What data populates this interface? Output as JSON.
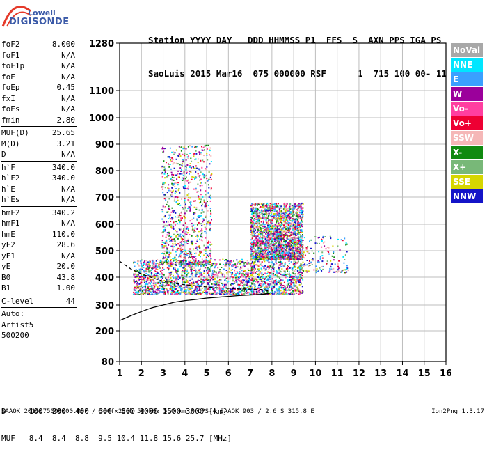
{
  "brand": {
    "line1": "Lowell",
    "line2": "DIGISONDE"
  },
  "header": {
    "line1": "Station YYYY DAY   DDD HHMMSS P1  FFS  S  AXN PPS IGA PS",
    "line2": "SaoLuis 2015 Mar16  075 000000 RSF      1  715 100 00- 11"
  },
  "params": [
    {
      "k": "foF2",
      "v": "8.000"
    },
    {
      "k": "foF1",
      "v": "N/A"
    },
    {
      "k": "foF1p",
      "v": "N/A"
    },
    {
      "k": "foE",
      "v": "N/A"
    },
    {
      "k": "foEp",
      "v": "0.45"
    },
    {
      "k": "fxI",
      "v": "N/A"
    },
    {
      "k": "foEs",
      "v": "N/A"
    },
    {
      "k": "fmin",
      "v": "2.80"
    },
    {
      "sep": true
    },
    {
      "k": "MUF(D)",
      "v": "25.65"
    },
    {
      "k": "M(D)",
      "v": "3.21"
    },
    {
      "k": "D",
      "v": "N/A"
    },
    {
      "sep": true
    },
    {
      "k": "h`F",
      "v": "340.0"
    },
    {
      "k": "h`F2",
      "v": "340.0"
    },
    {
      "k": "h`E",
      "v": "N/A"
    },
    {
      "k": "h`Es",
      "v": "N/A"
    },
    {
      "sep": true
    },
    {
      "k": "hmF2",
      "v": "340.2"
    },
    {
      "k": "hmF1",
      "v": "N/A"
    },
    {
      "k": "hmE",
      "v": "110.0"
    },
    {
      "k": "yF2",
      "v": "28.6"
    },
    {
      "k": "yF1",
      "v": "N/A"
    },
    {
      "k": "yE",
      "v": "20.0"
    },
    {
      "k": "B0",
      "v": "43.8"
    },
    {
      "k": "B1",
      "v": "1.00"
    },
    {
      "sep": true
    },
    {
      "k": "C-level",
      "v": "44"
    },
    {
      "sep": true
    },
    {
      "t": "Auto:"
    },
    {
      "t": "Artist5"
    },
    {
      "t": "500200"
    }
  ],
  "legend": [
    {
      "label": "NoVal",
      "color": "#a8a8a8"
    },
    {
      "label": "NNE",
      "color": "#00e6ff"
    },
    {
      "label": "E",
      "color": "#3aa0ff"
    },
    {
      "label": "W",
      "color": "#9b009b"
    },
    {
      "label": "Vo-",
      "color": "#ff3fa0"
    },
    {
      "label": "Vo+",
      "color": "#ee0033"
    },
    {
      "label": "SSW",
      "color": "#f5b7b7"
    },
    {
      "label": "X-",
      "color": "#108a10"
    },
    {
      "label": "X+",
      "color": "#78b878"
    },
    {
      "label": "SSE",
      "color": "#d6d600"
    },
    {
      "label": "NNW",
      "color": "#1414c8"
    }
  ],
  "bottom": {
    "d_row": "D     100  200  400  600  800 1000 1500 3000 [km]",
    "muf_row": "MUF   8.4  8.4  8.8  9.5 10.4 11.8 15.6 25.7 [MHz]"
  },
  "footer": {
    "text": "SAAOK_2015075000000.RSF / 300fx256h 50 kHz 5.0 km / DPS-4 SAAOK 903 / 2.6 S 315.8 E",
    "version": "Ion2Png 1.3.17"
  },
  "chart_data": {
    "type": "scatter",
    "title": "",
    "xlabel": "",
    "ylabel": "",
    "xlim": [
      1,
      16
    ],
    "ylim": [
      80,
      1280
    ],
    "x_ticks": [
      1,
      2,
      3,
      4,
      5,
      6,
      7,
      8,
      9,
      10,
      11,
      12,
      13,
      14,
      15,
      16
    ],
    "y_ticks": [
      80,
      200,
      300,
      400,
      500,
      600,
      700,
      800,
      900,
      1000,
      1100,
      1280
    ],
    "grid": true,
    "series": [
      {
        "name": "trace-o-lower",
        "points": [
          [
            1,
            240
          ],
          [
            1.5,
            258
          ],
          [
            2,
            275
          ],
          [
            2.5,
            290
          ],
          [
            3,
            300
          ],
          [
            3.5,
            310
          ],
          [
            4,
            316
          ],
          [
            4.5,
            320
          ],
          [
            5,
            325
          ],
          [
            5.5,
            328
          ],
          [
            6,
            331
          ],
          [
            6.5,
            334
          ],
          [
            7,
            336
          ],
          [
            7.5,
            338
          ],
          [
            7.9,
            342
          ]
        ]
      },
      {
        "name": "trace-x-upper",
        "points": [
          [
            1,
            460
          ],
          [
            1.5,
            432
          ],
          [
            2,
            412
          ],
          [
            2.5,
            398
          ],
          [
            3,
            385
          ],
          [
            3.5,
            378
          ],
          [
            4,
            373
          ],
          [
            4.5,
            369
          ],
          [
            5,
            365
          ],
          [
            5.5,
            362
          ],
          [
            6,
            360
          ],
          [
            6.5,
            358
          ],
          [
            7,
            357
          ],
          [
            7.5,
            356
          ],
          [
            7.9,
            350
          ]
        ]
      }
    ],
    "echo_regions": [
      {
        "x": [
          1.6,
          9.4
        ],
        "y": [
          340,
          470
        ],
        "density": "high"
      },
      {
        "x": [
          2.9,
          5.2
        ],
        "y": [
          450,
          900
        ],
        "density": "medium"
      },
      {
        "x": [
          7.0,
          9.4
        ],
        "y": [
          470,
          680
        ],
        "density": "high"
      },
      {
        "x": [
          9.2,
          11.5
        ],
        "y": [
          420,
          560
        ],
        "density": "low"
      }
    ]
  }
}
